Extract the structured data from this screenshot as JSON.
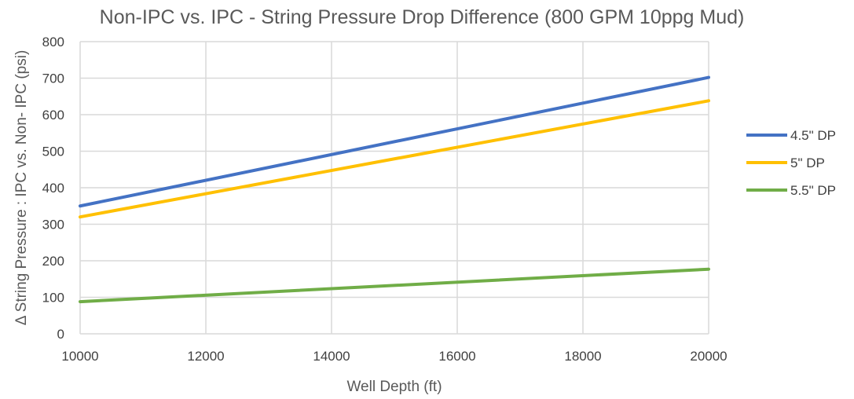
{
  "chart_data": {
    "type": "line",
    "title": "Non-IPC vs. IPC - String Pressure Drop Difference (800 GPM 10ppg Mud)",
    "xlabel": "Well Depth (ft)",
    "ylabel": "Δ String Pressure : IPC vs. Non- IPC (psi)",
    "xlim": [
      10000,
      20000
    ],
    "ylim": [
      0,
      800
    ],
    "x_ticks": [
      10000,
      12000,
      14000,
      16000,
      18000,
      20000
    ],
    "y_ticks": [
      0,
      100,
      200,
      300,
      400,
      500,
      600,
      700,
      800
    ],
    "grid": true,
    "legend_position": "right",
    "x": [
      10000,
      20000
    ],
    "series": [
      {
        "name": "4.5\" DP",
        "color": "#4472c4",
        "values": [
          350,
          702
        ]
      },
      {
        "name": "5\" DP",
        "color": "#ffc000",
        "values": [
          320,
          638
        ]
      },
      {
        "name": "5.5\" DP",
        "color": "#70ad47",
        "values": [
          88,
          177
        ]
      }
    ]
  }
}
